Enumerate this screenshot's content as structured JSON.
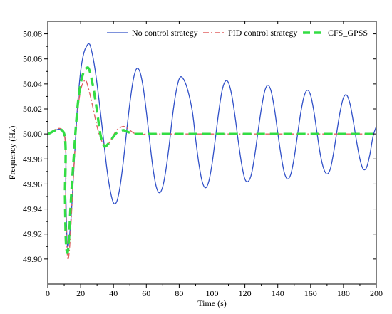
{
  "chart_data": {
    "type": "line",
    "title": "",
    "xlabel": "Time (s)",
    "ylabel": "Frequency (Hz)",
    "xlim": [
      0,
      200
    ],
    "ylim": [
      49.88,
      50.09
    ],
    "x_ticks": [
      0,
      20,
      40,
      60,
      80,
      100,
      120,
      140,
      160,
      180,
      200
    ],
    "y_ticks": [
      49.9,
      49.92,
      49.94,
      49.96,
      49.98,
      50.0,
      50.02,
      50.04,
      50.06,
      50.08
    ],
    "x_tick_labels": [
      "0",
      "20",
      "40",
      "60",
      "80",
      "100",
      "120",
      "140",
      "160",
      "180",
      "200"
    ],
    "y_tick_labels": [
      "49.90",
      "49.92",
      "49.94",
      "49.96",
      "49.98",
      "50.00",
      "50.02",
      "50.04",
      "50.06",
      "50.08"
    ],
    "grid": false,
    "legend_position": "top-right",
    "series": [
      {
        "name": "No control strategy",
        "color": "#3050c8",
        "dash": "solid",
        "x": [
          0,
          10,
          11,
          12,
          14,
          16,
          18,
          20,
          22,
          24,
          25,
          26,
          28,
          30,
          32,
          34,
          36,
          38,
          40,
          42,
          44,
          46,
          48,
          50,
          52,
          54,
          56,
          58,
          60,
          62,
          64,
          66,
          68,
          70,
          72,
          74,
          76,
          78,
          80,
          82,
          85,
          88,
          90,
          92,
          94,
          96,
          98,
          100,
          102,
          104,
          106,
          108,
          110,
          112,
          114,
          116,
          118,
          120,
          122,
          124,
          126,
          128,
          130,
          132,
          134,
          136,
          138,
          140,
          142,
          144,
          146,
          148,
          150,
          152,
          154,
          156,
          158,
          160,
          162,
          164,
          166,
          168,
          170,
          172,
          174,
          176,
          178,
          180,
          182,
          184,
          186,
          188,
          190,
          192,
          194,
          196,
          198,
          200
        ],
        "values": [
          50.0,
          50.0,
          49.95,
          49.91,
          49.93,
          49.975,
          50.02,
          50.05,
          50.065,
          50.071,
          50.072,
          50.07,
          50.058,
          50.04,
          50.018,
          49.995,
          49.972,
          49.955,
          49.945,
          49.946,
          49.958,
          49.978,
          50.002,
          50.025,
          50.043,
          50.052,
          50.05,
          50.038,
          50.018,
          49.995,
          49.973,
          49.958,
          49.953,
          49.958,
          49.972,
          49.992,
          50.015,
          50.033,
          50.044,
          50.045,
          50.036,
          50.018,
          49.996,
          49.976,
          49.962,
          49.957,
          49.962,
          49.976,
          49.996,
          50.017,
          50.034,
          50.042,
          50.041,
          50.031,
          50.014,
          49.994,
          49.976,
          49.964,
          49.962,
          49.968,
          49.983,
          50.002,
          50.02,
          50.034,
          50.039,
          50.034,
          50.02,
          50.001,
          49.983,
          49.969,
          49.964,
          49.968,
          49.981,
          49.999,
          50.017,
          50.03,
          50.035,
          50.031,
          50.018,
          50.0,
          49.983,
          49.972,
          49.968,
          49.972,
          49.985,
          50.002,
          50.018,
          50.029,
          50.031,
          50.024,
          50.01,
          49.994,
          49.98,
          49.972,
          49.973,
          49.983,
          49.998,
          50.006
        ]
      },
      {
        "name": "PID control strategy",
        "color": "#e06060",
        "dash": "dashdot",
        "x": [
          0,
          10,
          11,
          12,
          13,
          14,
          16,
          18,
          20,
          22,
          23,
          24,
          26,
          28,
          30,
          32,
          34,
          36,
          38,
          40,
          42,
          44,
          46,
          48,
          50,
          52,
          54,
          56,
          58,
          60,
          65,
          70,
          80,
          100,
          120,
          140,
          160,
          180,
          200
        ],
        "values": [
          50.0,
          50.0,
          49.94,
          49.902,
          49.905,
          49.925,
          49.975,
          50.015,
          50.035,
          50.042,
          50.043,
          50.04,
          50.03,
          50.018,
          50.006,
          49.997,
          49.992,
          49.991,
          49.994,
          49.999,
          50.003,
          50.005,
          50.006,
          50.005,
          50.003,
          50.001,
          50.0,
          49.9995,
          49.9995,
          50.0,
          50.0,
          50.0,
          50.0,
          50.0,
          50.0,
          50.0,
          50.0,
          50.0,
          50.0
        ]
      },
      {
        "name": "CFS_GPSS",
        "color": "#33dd44",
        "dash": "dashed",
        "x": [
          0,
          10,
          10.5,
          11,
          12,
          13,
          14,
          16,
          18,
          20,
          22,
          24,
          25,
          26,
          28,
          30,
          32,
          34,
          35,
          36,
          38,
          40,
          42,
          44,
          46,
          48,
          50,
          52,
          55,
          60,
          70,
          80,
          100,
          120,
          140,
          160,
          180,
          200
        ],
        "values": [
          50.0,
          50.0,
          49.95,
          49.915,
          49.905,
          49.918,
          49.945,
          49.985,
          50.02,
          50.04,
          50.05,
          50.053,
          50.052,
          50.048,
          50.035,
          50.018,
          50.0,
          49.991,
          49.99,
          49.991,
          49.994,
          49.998,
          50.001,
          50.002,
          50.003,
          50.002,
          50.001,
          50.0,
          50.0,
          50.0,
          50.0,
          50.0,
          50.0,
          50.0,
          50.0,
          50.0,
          50.0,
          50.0
        ]
      }
    ]
  }
}
